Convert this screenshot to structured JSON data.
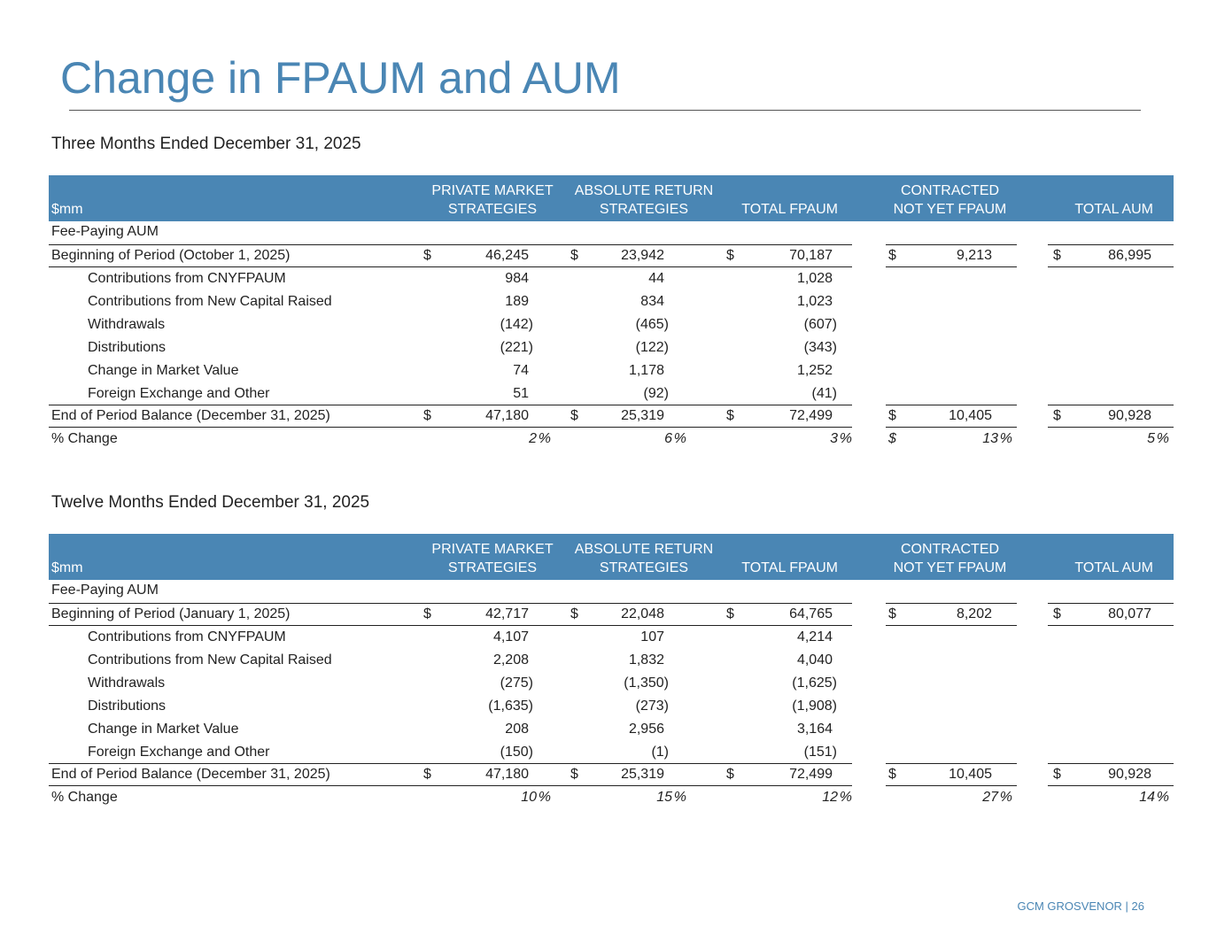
{
  "title": "Change in FPAUM and AUM",
  "tables": [
    {
      "heading": "Three Months Ended December 31, 2025",
      "unit": "$mm",
      "columns": [
        [
          "PRIVATE MARKET",
          "STRATEGIES"
        ],
        [
          "ABSOLUTE RETURN",
          "STRATEGIES"
        ],
        [
          "TOTAL FPAUM"
        ],
        [
          "CONTRACTED",
          "NOT YET FPAUM"
        ],
        [
          "TOTAL AUM"
        ]
      ],
      "section": "Fee-Paying AUM",
      "opening": {
        "label": "Beginning of Period (October 1, 2025)",
        "cells": [
          {
            "pre": "$",
            "v": "46,245"
          },
          {
            "pre": "$",
            "v": "23,942"
          },
          {
            "pre": "$",
            "v": "70,187"
          },
          {
            "pre": "$",
            "v": "9,213"
          },
          {
            "pre": "$",
            "v": "86,995"
          }
        ]
      },
      "flows": [
        {
          "label": "Contributions from CNYFPAUM",
          "cells": [
            {
              "v": "984"
            },
            {
              "v": "44"
            },
            {
              "v": "1,028"
            }
          ]
        },
        {
          "label": "Contributions from New Capital Raised",
          "cells": [
            {
              "v": "189"
            },
            {
              "v": "834"
            },
            {
              "v": "1,023"
            }
          ]
        },
        {
          "label": "Withdrawals",
          "cells": [
            {
              "v": "(142)"
            },
            {
              "v": "(465)"
            },
            {
              "v": "(607)"
            }
          ]
        },
        {
          "label": "Distributions",
          "cells": [
            {
              "v": "(221)"
            },
            {
              "v": "(122)"
            },
            {
              "v": "(343)"
            }
          ]
        },
        {
          "label": "Change in Market Value",
          "cells": [
            {
              "v": "74"
            },
            {
              "v": "1,178"
            },
            {
              "v": "1,252"
            }
          ]
        },
        {
          "label": "Foreign Exchange and Other",
          "cells": [
            {
              "v": "51"
            },
            {
              "v": "(92)"
            },
            {
              "v": "(41)"
            }
          ]
        }
      ],
      "closing": {
        "label": "End of Period Balance (December 31, 2025)",
        "cells": [
          {
            "pre": "$",
            "v": "47,180"
          },
          {
            "pre": "$",
            "v": "25,319"
          },
          {
            "pre": "$",
            "v": "72,499"
          },
          {
            "pre": "$",
            "v": "10,405"
          },
          {
            "pre": "$",
            "v": "90,928"
          }
        ]
      },
      "change": {
        "label": "% Change",
        "cells": [
          {
            "v": "2",
            "post": "%"
          },
          {
            "v": "6",
            "post": "%"
          },
          {
            "v": "3",
            "post": "%"
          },
          {
            "pre": "$",
            "v": "13",
            "post": "%"
          },
          {
            "v": "5",
            "post": "%"
          }
        ]
      }
    },
    {
      "heading": "Twelve Months Ended December 31, 2025",
      "unit": "$mm",
      "columns": [
        [
          "PRIVATE MARKET",
          "STRATEGIES"
        ],
        [
          "ABSOLUTE RETURN",
          "STRATEGIES"
        ],
        [
          "TOTAL FPAUM"
        ],
        [
          "CONTRACTED",
          "NOT YET FPAUM"
        ],
        [
          "TOTAL AUM"
        ]
      ],
      "section": "Fee-Paying AUM",
      "opening": {
        "label": "Beginning of Period (January 1, 2025)",
        "cells": [
          {
            "pre": "$",
            "v": "42,717"
          },
          {
            "pre": "$",
            "v": "22,048"
          },
          {
            "pre": "$",
            "v": "64,765"
          },
          {
            "pre": "$",
            "v": "8,202"
          },
          {
            "pre": "$",
            "v": "80,077"
          }
        ]
      },
      "flows": [
        {
          "label": "Contributions from CNYFPAUM",
          "cells": [
            {
              "v": "4,107"
            },
            {
              "v": "107"
            },
            {
              "v": "4,214"
            }
          ]
        },
        {
          "label": "Contributions from New Capital Raised",
          "cells": [
            {
              "v": "2,208"
            },
            {
              "v": "1,832"
            },
            {
              "v": "4,040"
            }
          ]
        },
        {
          "label": "Withdrawals",
          "cells": [
            {
              "v": "(275)"
            },
            {
              "v": "(1,350)"
            },
            {
              "v": "(1,625)"
            }
          ]
        },
        {
          "label": "Distributions",
          "cells": [
            {
              "v": "(1,635)"
            },
            {
              "v": "(273)"
            },
            {
              "v": "(1,908)"
            }
          ]
        },
        {
          "label": "Change in Market Value",
          "cells": [
            {
              "v": "208"
            },
            {
              "v": "2,956"
            },
            {
              "v": "3,164"
            }
          ]
        },
        {
          "label": "Foreign Exchange and Other",
          "cells": [
            {
              "v": "(150)"
            },
            {
              "v": "(1)"
            },
            {
              "v": "(151)"
            }
          ]
        }
      ],
      "closing": {
        "label": "End of Period Balance (December 31, 2025)",
        "cells": [
          {
            "pre": "$",
            "v": "47,180"
          },
          {
            "pre": "$",
            "v": "25,319"
          },
          {
            "pre": "$",
            "v": "72,499"
          },
          {
            "pre": "$",
            "v": "10,405"
          },
          {
            "pre": "$",
            "v": "90,928"
          }
        ]
      },
      "change": {
        "label": "% Change",
        "cells": [
          {
            "v": "10",
            "post": "%"
          },
          {
            "v": "15",
            "post": "%"
          },
          {
            "v": "12",
            "post": "%"
          },
          {
            "v": "27",
            "post": "%"
          },
          {
            "v": "14",
            "post": "%"
          }
        ]
      }
    }
  ],
  "footer": "GCM GROSVENOR | 26"
}
